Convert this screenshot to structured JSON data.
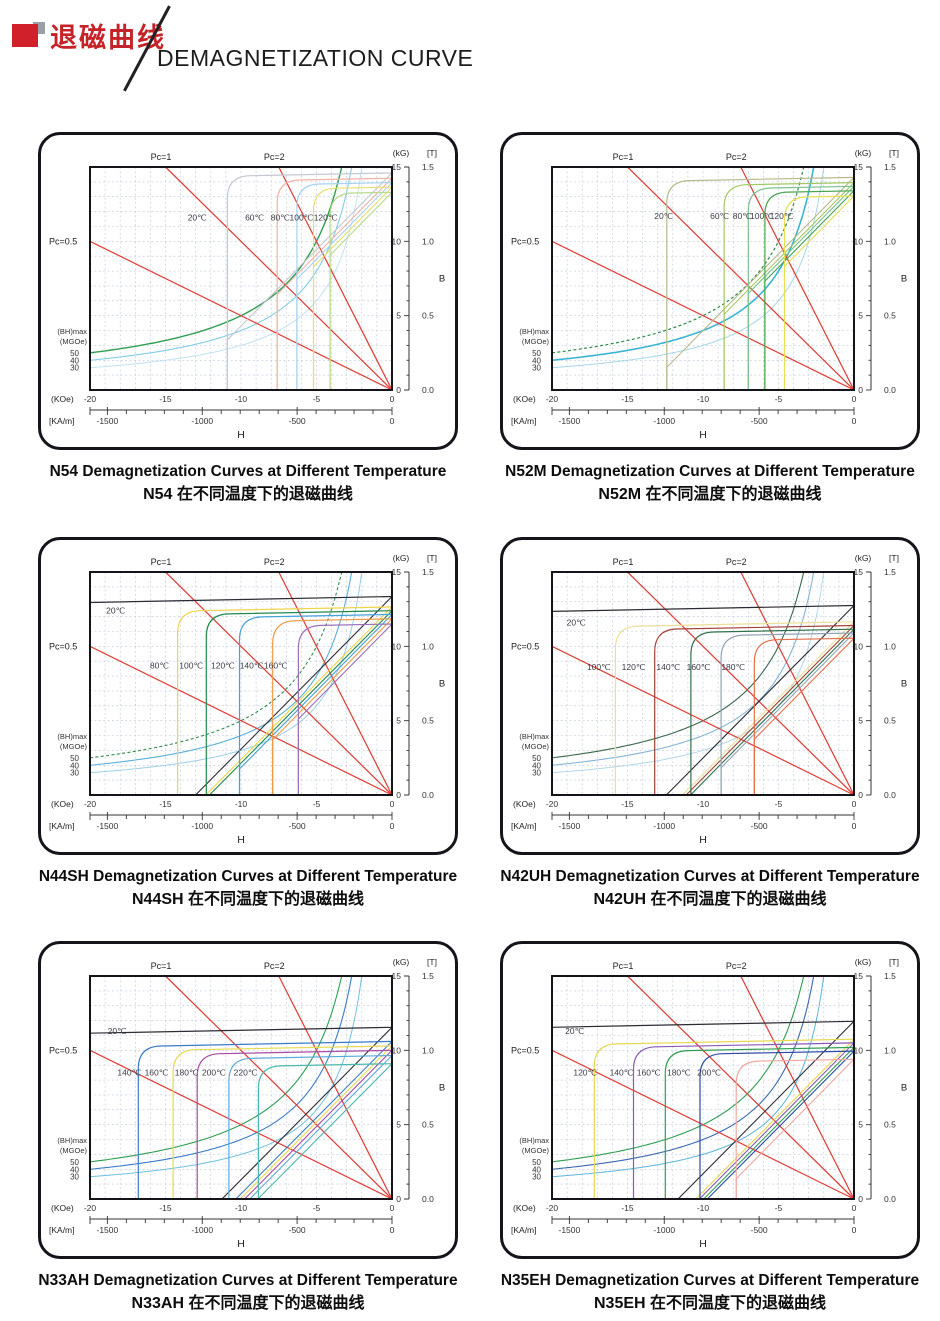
{
  "header": {
    "title_zh": "退磁曲线",
    "title_en": "DEMAGNETIZATION CURVE",
    "logo_color": "#d0202a"
  },
  "chart_common": {
    "pc_labels": [
      "Pc=0.5",
      "Pc=1",
      "Pc=2"
    ],
    "pc_values": [
      0.5,
      1,
      2
    ],
    "load_line_color": "#e04038",
    "y_unit_kg": "(kG)",
    "y_unit_t": "[T]",
    "y_ticks_kg": [
      15,
      10,
      5,
      0
    ],
    "y_ticks_t": [
      "1.5",
      "1.0",
      "0.5",
      "0.0"
    ],
    "y_axis_title": "B",
    "x_unit_koe": "(KOe)",
    "x_ticks_koe": [
      -20,
      -15,
      -10,
      -5,
      0
    ],
    "x_unit_kam": "[KA/m]",
    "x_ticks_kam": [
      -1500,
      -1000,
      -500,
      0
    ],
    "x_axis_title": "H",
    "bhmax_label": "(BH)max",
    "bhmax_unit": "(MGOe)",
    "bhmax_values": [
      50,
      40,
      30
    ],
    "grid_color": "#b7c1da"
  },
  "chart_data": [
    {
      "grade": "N54",
      "type": "line",
      "title_en": "N54 Demagnetization Curves at Different Temperature",
      "title_zh": "N54 在不同温度下的退磁曲线",
      "x_range_koe": [
        -20,
        0
      ],
      "y_range_kg": [
        0,
        15
      ],
      "bh_contours": [
        {
          "mgoe": 50,
          "color": "#2f9e52",
          "width": 1.4
        },
        {
          "mgoe": 40,
          "color": "#84cce6",
          "width": 1.1
        },
        {
          "mgoe": 30,
          "color": "#c2e2f0",
          "width": 1.0
        }
      ],
      "series": [
        {
          "label": "20℃",
          "temp_c": 20,
          "br_kg": 14.6,
          "hcj_koe": -10.9,
          "color": "#c4c8d2",
          "label_pos": [
            -12.9,
            11.6
          ]
        },
        {
          "label": "60℃",
          "temp_c": 60,
          "br_kg": 14.25,
          "hcj_koe": -7.6,
          "color": "#f2b2a6",
          "label_pos": [
            -9.1,
            11.6
          ]
        },
        {
          "label": "80℃",
          "temp_c": 80,
          "br_kg": 13.95,
          "hcj_koe": -6.3,
          "color": "#a8d2ee",
          "label_pos": [
            -7.4,
            11.6
          ]
        },
        {
          "label": "100℃",
          "temp_c": 100,
          "br_kg": 13.65,
          "hcj_koe": -5.2,
          "color": "#e8de6a",
          "label_pos": [
            -6.0,
            11.6
          ]
        },
        {
          "label": "120℃",
          "temp_c": 120,
          "br_kg": 13.3,
          "hcj_koe": -4.1,
          "color": "#b8da8c",
          "label_pos": [
            -4.4,
            11.6
          ]
        }
      ]
    },
    {
      "grade": "N52M",
      "type": "line",
      "title_en": "N52M Demagnetization Curves at Different Temperature",
      "title_zh": "N52M 在不同温度下的退磁曲线",
      "x_range_koe": [
        -20,
        0
      ],
      "y_range_kg": [
        0,
        15
      ],
      "bh_contours": [
        {
          "mgoe": 50,
          "color": "#2f8a4a",
          "width": 1.2,
          "dash": "3,2.4"
        },
        {
          "mgoe": 40,
          "color": "#3cb4d4",
          "width": 1.6
        },
        {
          "mgoe": 30,
          "color": "#a6d6e8",
          "width": 1.0
        }
      ],
      "series": [
        {
          "label": "20℃",
          "temp_c": 20,
          "br_kg": 14.3,
          "hcj_koe": -12.4,
          "color": "#b8b88a",
          "label_pos": [
            -12.6,
            11.7
          ]
        },
        {
          "label": "60℃",
          "temp_c": 60,
          "br_kg": 13.95,
          "hcj_koe": -8.6,
          "color": "#a2c862",
          "label_pos": [
            -8.9,
            11.7
          ]
        },
        {
          "label": "80℃",
          "temp_c": 80,
          "br_kg": 13.7,
          "hcj_koe": -7.0,
          "color": "#7ac08c",
          "label_pos": [
            -7.4,
            11.7
          ]
        },
        {
          "label": "100℃",
          "temp_c": 100,
          "br_kg": 13.4,
          "hcj_koe": -5.9,
          "color": "#46a44e",
          "label_pos": [
            -6.1,
            11.7
          ]
        },
        {
          "label": "120℃",
          "temp_c": 120,
          "br_kg": 13.05,
          "hcj_koe": -4.6,
          "color": "#e6e052",
          "label_pos": [
            -4.8,
            11.7
          ]
        }
      ]
    },
    {
      "grade": "N44SH",
      "type": "line",
      "title_en": "N44SH Demagnetization Curves at Different Temperature",
      "title_zh": "N44SH 在不同温度下的退磁曲线",
      "x_range_koe": [
        -20,
        0
      ],
      "y_range_kg": [
        0,
        15
      ],
      "bh_contours": [
        {
          "mgoe": 50,
          "color": "#2f8a4a",
          "width": 1.1,
          "dash": "3,2.4"
        },
        {
          "mgoe": 40,
          "color": "#5ab0da",
          "width": 1.1
        },
        {
          "mgoe": 30,
          "color": "#9cd0e8",
          "width": 1.0
        }
      ],
      "series": [
        {
          "label": "20℃",
          "temp_c": 20,
          "br_kg": 13.35,
          "hcj_koe": -24,
          "color": "#2b2b33",
          "label_pos": [
            -18.3,
            12.4
          ]
        },
        {
          "label": "80℃",
          "temp_c": 80,
          "br_kg": 12.65,
          "hcj_koe": -14.2,
          "color": "#f0d44a",
          "label_pos": [
            -15.4,
            8.7
          ]
        },
        {
          "label": "100℃",
          "temp_c": 100,
          "br_kg": 12.4,
          "hcj_koe": -12.3,
          "color": "#208a4a",
          "label_pos": [
            -13.3,
            8.7
          ]
        },
        {
          "label": "120℃",
          "temp_c": 120,
          "br_kg": 12.15,
          "hcj_koe": -10.1,
          "color": "#44a2da",
          "label_pos": [
            -11.2,
            8.7
          ]
        },
        {
          "label": "140℃",
          "temp_c": 140,
          "br_kg": 11.85,
          "hcj_koe": -7.9,
          "color": "#f09a40",
          "label_pos": [
            -9.3,
            8.7
          ]
        },
        {
          "label": "160℃",
          "temp_c": 160,
          "br_kg": 11.5,
          "hcj_koe": -6.2,
          "color": "#9a70b8",
          "label_pos": [
            -7.7,
            8.7
          ]
        }
      ]
    },
    {
      "grade": "N42UH",
      "type": "line",
      "title_en": "N42UH Demagnetization Curves at Different Temperature",
      "title_zh": "N42UH 在不同温度下的退磁曲线",
      "x_range_koe": [
        -20,
        0
      ],
      "y_range_kg": [
        0,
        15
      ],
      "bh_contours": [
        {
          "mgoe": 50,
          "color": "#38684a",
          "width": 1.1
        },
        {
          "mgoe": 40,
          "color": "#88b4d4",
          "width": 1.1
        },
        {
          "mgoe": 30,
          "color": "#b4d6e8",
          "width": 1.0
        }
      ],
      "series": [
        {
          "label": "20℃",
          "temp_c": 20,
          "br_kg": 12.75,
          "hcj_koe": -26,
          "color": "#2b2b33",
          "label_pos": [
            -18.4,
            11.6
          ]
        },
        {
          "label": "100℃",
          "temp_c": 100,
          "br_kg": 11.65,
          "hcj_koe": -15.8,
          "color": "#ecdf96",
          "label_pos": [
            -16.9,
            8.6
          ]
        },
        {
          "label": "120℃",
          "temp_c": 120,
          "br_kg": 11.4,
          "hcj_koe": -13.2,
          "color": "#a24238",
          "label_pos": [
            -14.6,
            8.6
          ]
        },
        {
          "label": "140℃",
          "temp_c": 140,
          "br_kg": 11.15,
          "hcj_koe": -10.8,
          "color": "#30704a",
          "label_pos": [
            -12.3,
            8.6
          ]
        },
        {
          "label": "160℃",
          "temp_c": 160,
          "br_kg": 10.9,
          "hcj_koe": -8.8,
          "color": "#92a2b2",
          "label_pos": [
            -10.3,
            8.6
          ]
        },
        {
          "label": "180℃",
          "temp_c": 180,
          "br_kg": 10.55,
          "hcj_koe": -6.6,
          "color": "#e86e44",
          "label_pos": [
            -8.0,
            8.6
          ]
        }
      ]
    },
    {
      "grade": "N33AH",
      "type": "line",
      "title_en": "N33AH Demagnetization Curves at Different Temperature",
      "title_zh": "N33AH 在不同温度下的退磁曲线",
      "x_range_koe": [
        -20,
        0
      ],
      "y_range_kg": [
        0,
        15
      ],
      "bh_contours": [
        {
          "mgoe": 50,
          "color": "#2f9e52",
          "width": 1.1
        },
        {
          "mgoe": 40,
          "color": "#3a7cc8",
          "width": 1.1
        },
        {
          "mgoe": 30,
          "color": "#6ec0e0",
          "width": 1.0
        }
      ],
      "series": [
        {
          "label": "20℃",
          "temp_c": 20,
          "br_kg": 11.55,
          "hcj_koe": -30,
          "color": "#2b2b33",
          "label_pos": [
            -18.2,
            11.3
          ]
        },
        {
          "label": "140℃",
          "temp_c": 140,
          "br_kg": 10.6,
          "hcj_koe": -16.8,
          "color": "#3a7cc8",
          "label_pos": [
            -17.4,
            8.5
          ]
        },
        {
          "label": "160℃",
          "temp_c": 160,
          "br_kg": 10.3,
          "hcj_koe": -14.5,
          "color": "#e8d84e",
          "label_pos": [
            -15.6,
            8.5
          ]
        },
        {
          "label": "180℃",
          "temp_c": 180,
          "br_kg": 10.0,
          "hcj_koe": -12.9,
          "color": "#aa4aa2",
          "label_pos": [
            -13.6,
            8.5
          ]
        },
        {
          "label": "200℃",
          "temp_c": 200,
          "br_kg": 9.65,
          "hcj_koe": -10.8,
          "color": "#5aaad8",
          "label_pos": [
            -11.8,
            8.5
          ]
        },
        {
          "label": "220℃",
          "temp_c": 220,
          "br_kg": 9.1,
          "hcj_koe": -8.85,
          "color": "#4ab8ae",
          "label_pos": [
            -9.7,
            8.5
          ]
        }
      ]
    },
    {
      "grade": "N35EH",
      "type": "line",
      "title_en": "N35EH Demagnetization Curves at Different Temperature",
      "title_zh": "N35EH 在不同温度下的退磁曲线",
      "x_range_koe": [
        -20,
        0
      ],
      "y_range_kg": [
        0,
        15
      ],
      "bh_contours": [
        {
          "mgoe": 50,
          "color": "#2f9e52",
          "width": 1.1
        },
        {
          "mgoe": 40,
          "color": "#3a68b0",
          "width": 1.1
        },
        {
          "mgoe": 30,
          "color": "#5ab4dc",
          "width": 1.0
        }
      ],
      "series": [
        {
          "label": "20℃",
          "temp_c": 20,
          "br_kg": 11.95,
          "hcj_koe": -30,
          "color": "#2b2b33",
          "label_pos": [
            -18.5,
            11.3
          ]
        },
        {
          "label": "120℃",
          "temp_c": 120,
          "br_kg": 10.75,
          "hcj_koe": -17.2,
          "color": "#e8d84e",
          "label_pos": [
            -17.8,
            8.5
          ]
        },
        {
          "label": "140℃",
          "temp_c": 140,
          "br_kg": 10.5,
          "hcj_koe": -14.6,
          "color": "#8a5ab4",
          "label_pos": [
            -15.4,
            8.5
          ]
        },
        {
          "label": "160℃",
          "temp_c": 160,
          "br_kg": 10.2,
          "hcj_koe": -12.5,
          "color": "#2f9e52",
          "label_pos": [
            -13.6,
            8.5
          ]
        },
        {
          "label": "180℃",
          "temp_c": 180,
          "br_kg": 9.95,
          "hcj_koe": -10.2,
          "color": "#2a4aa4",
          "label_pos": [
            -11.6,
            8.5
          ]
        },
        {
          "label": "200℃",
          "temp_c": 200,
          "br_kg": 9.4,
          "hcj_koe": -7.8,
          "color": "#f0a8a0",
          "label_pos": [
            -9.6,
            8.5
          ]
        }
      ]
    }
  ]
}
